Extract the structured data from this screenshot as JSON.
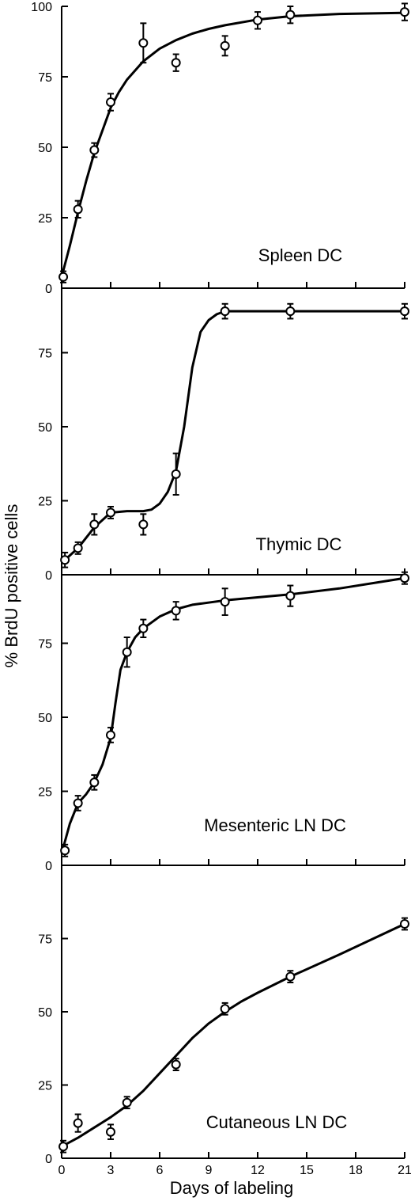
{
  "figure": {
    "ylabel": "% BrdU positive cells",
    "xlabel": "Days of labeling"
  },
  "chart_data": [
    {
      "type": "scatter",
      "label": "Spleen DC",
      "xlim": [
        0,
        21
      ],
      "ylim": [
        0,
        100
      ],
      "yticks": [
        0,
        25,
        50,
        75,
        100
      ],
      "points": [
        {
          "x": 0.1,
          "y": 4,
          "err": 2
        },
        {
          "x": 1,
          "y": 28,
          "err": 3
        },
        {
          "x": 2,
          "y": 49,
          "err": 2.5
        },
        {
          "x": 3,
          "y": 66,
          "err": 3
        },
        {
          "x": 5,
          "y": 87,
          "err": 7
        },
        {
          "x": 7,
          "y": 80,
          "err": 3
        },
        {
          "x": 10,
          "y": 86,
          "err": 3.5
        },
        {
          "x": 12,
          "y": 95,
          "err": 3
        },
        {
          "x": 14,
          "y": 97,
          "err": 3
        },
        {
          "x": 21,
          "y": 98,
          "err": 3
        }
      ],
      "curve": [
        [
          0,
          4
        ],
        [
          0.5,
          15
        ],
        [
          1,
          27
        ],
        [
          1.5,
          38
        ],
        [
          2,
          48
        ],
        [
          2.5,
          56
        ],
        [
          3,
          64
        ],
        [
          3.5,
          69.5
        ],
        [
          4,
          74
        ],
        [
          5,
          80.5
        ],
        [
          6,
          85
        ],
        [
          7,
          88
        ],
        [
          8,
          90.3
        ],
        [
          9,
          92
        ],
        [
          10,
          93.3
        ],
        [
          12,
          95.3
        ],
        [
          14,
          96.5
        ],
        [
          17,
          97.3
        ],
        [
          21,
          97.7
        ]
      ]
    },
    {
      "type": "scatter",
      "label": "Thymic DC",
      "xlim": [
        0,
        21
      ],
      "ylim": [
        0,
        100
      ],
      "yticks": [
        0,
        25,
        50,
        75
      ],
      "points": [
        {
          "x": 0.2,
          "y": 5,
          "err": 2.5
        },
        {
          "x": 1,
          "y": 9,
          "err": 2
        },
        {
          "x": 2,
          "y": 17,
          "err": 3.5
        },
        {
          "x": 3,
          "y": 21,
          "err": 2
        },
        {
          "x": 5,
          "y": 17,
          "err": 3.5
        },
        {
          "x": 7,
          "y": 34,
          "err": 7
        },
        {
          "x": 10,
          "y": 89,
          "err": 2.5
        },
        {
          "x": 14,
          "y": 89,
          "err": 2.5
        },
        {
          "x": 21,
          "y": 89,
          "err": 2.5
        }
      ],
      "curve": [
        [
          0,
          4
        ],
        [
          1,
          9
        ],
        [
          2,
          16
        ],
        [
          3,
          21
        ],
        [
          4,
          21.5
        ],
        [
          5,
          21.5
        ],
        [
          5.5,
          22
        ],
        [
          6,
          24
        ],
        [
          6.5,
          28
        ],
        [
          7,
          35
        ],
        [
          7.5,
          50
        ],
        [
          8,
          70
        ],
        [
          8.5,
          82
        ],
        [
          9,
          86
        ],
        [
          9.5,
          88
        ],
        [
          10,
          89
        ],
        [
          11,
          89
        ],
        [
          14,
          89
        ],
        [
          21,
          89
        ]
      ]
    },
    {
      "type": "scatter",
      "label": "Mesenteric LN DC",
      "xlim": [
        0,
        21
      ],
      "ylim": [
        0,
        100
      ],
      "yticks": [
        0,
        25,
        50,
        75
      ],
      "points": [
        {
          "x": 0.2,
          "y": 5,
          "err": 2
        },
        {
          "x": 1,
          "y": 21,
          "err": 2.5
        },
        {
          "x": 2,
          "y": 28,
          "err": 2.5
        },
        {
          "x": 3,
          "y": 44,
          "err": 2.5
        },
        {
          "x": 4,
          "y": 72,
          "err": 5
        },
        {
          "x": 5,
          "y": 80,
          "err": 3
        },
        {
          "x": 7,
          "y": 86,
          "err": 3
        },
        {
          "x": 10,
          "y": 89,
          "err": 4.5
        },
        {
          "x": 14,
          "y": 91,
          "err": 3.5
        },
        {
          "x": 21,
          "y": 97,
          "err": 2
        }
      ],
      "curve": [
        [
          0,
          4
        ],
        [
          0.5,
          14
        ],
        [
          1,
          21
        ],
        [
          1.5,
          24
        ],
        [
          2,
          28
        ],
        [
          2.5,
          34
        ],
        [
          3,
          43
        ],
        [
          3.3,
          55
        ],
        [
          3.6,
          66
        ],
        [
          4,
          72
        ],
        [
          4.5,
          77
        ],
        [
          5,
          80
        ],
        [
          6,
          84
        ],
        [
          7,
          86.5
        ],
        [
          8,
          88
        ],
        [
          10,
          89.5
        ],
        [
          12,
          90.5
        ],
        [
          14,
          91.5
        ],
        [
          17,
          93.5
        ],
        [
          21,
          97
        ]
      ]
    },
    {
      "type": "scatter",
      "label": "Cutaneous LN DC",
      "xlim": [
        0,
        21
      ],
      "ylim": [
        0,
        100
      ],
      "yticks": [
        0,
        25,
        50,
        75
      ],
      "xticks": [
        0,
        3,
        6,
        9,
        12,
        15,
        18,
        21
      ],
      "points": [
        {
          "x": 0.1,
          "y": 4,
          "err": 2
        },
        {
          "x": 1,
          "y": 12,
          "err": 3
        },
        {
          "x": 3,
          "y": 9,
          "err": 2.5
        },
        {
          "x": 4,
          "y": 19,
          "err": 2
        },
        {
          "x": 7,
          "y": 32,
          "err": 2
        },
        {
          "x": 10,
          "y": 51,
          "err": 2
        },
        {
          "x": 14,
          "y": 62,
          "err": 2
        },
        {
          "x": 21,
          "y": 80,
          "err": 2
        }
      ],
      "curve": [
        [
          0,
          4
        ],
        [
          1,
          7
        ],
        [
          2,
          10.5
        ],
        [
          3,
          14
        ],
        [
          4,
          18
        ],
        [
          5,
          23
        ],
        [
          6,
          29
        ],
        [
          7,
          35
        ],
        [
          8,
          41
        ],
        [
          9,
          46
        ],
        [
          10,
          50
        ],
        [
          11,
          53.5
        ],
        [
          12,
          56.5
        ],
        [
          14,
          62
        ],
        [
          17,
          69.5
        ],
        [
          21,
          80
        ]
      ]
    }
  ]
}
